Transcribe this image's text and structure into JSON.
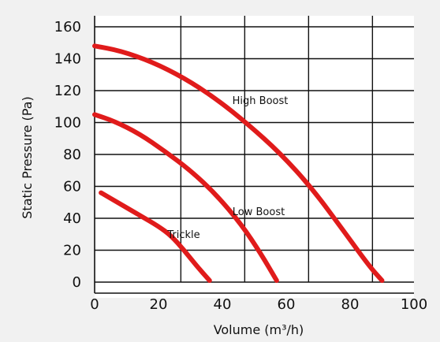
{
  "chart_data": {
    "type": "line",
    "title": "",
    "xlabel": "Volume (m³/h)",
    "ylabel": "Static Pressure (Pa)",
    "xlim": [
      0,
      100
    ],
    "ylim": [
      0,
      160
    ],
    "xticks": [
      0,
      20,
      40,
      60,
      80,
      100
    ],
    "yticks": [
      0,
      20,
      40,
      60,
      80,
      100,
      120,
      140,
      160
    ],
    "grid": true,
    "series": [
      {
        "name": "High Boost",
        "color": "#e01b1b",
        "points": [
          [
            0,
            148
          ],
          [
            8,
            145
          ],
          [
            18,
            138
          ],
          [
            28,
            128
          ],
          [
            38,
            115
          ],
          [
            48,
            99
          ],
          [
            58,
            81
          ],
          [
            68,
            59
          ],
          [
            78,
            32
          ],
          [
            86,
            10
          ],
          [
            90,
            1
          ]
        ]
      },
      {
        "name": "Low Boost",
        "color": "#e01b1b",
        "points": [
          [
            0,
            105
          ],
          [
            6,
            101
          ],
          [
            14,
            93
          ],
          [
            22,
            82
          ],
          [
            30,
            70
          ],
          [
            38,
            55
          ],
          [
            46,
            36
          ],
          [
            52,
            18
          ],
          [
            57,
            1
          ]
        ]
      },
      {
        "name": "Trickle",
        "color": "#e01b1b",
        "points": [
          [
            2,
            56
          ],
          [
            8,
            49
          ],
          [
            14,
            42
          ],
          [
            20,
            35
          ],
          [
            24,
            29
          ],
          [
            28,
            20
          ],
          [
            32,
            10
          ],
          [
            36,
            1
          ]
        ]
      }
    ]
  }
}
